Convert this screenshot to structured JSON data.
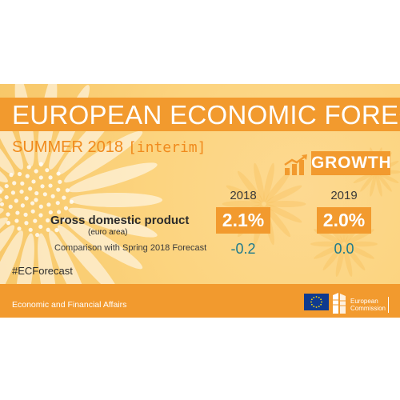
{
  "header": {
    "title": "EUROPEAN ECONOMIC FORECAST",
    "subtitle_main": "SUMMER 2018",
    "subtitle_tag": "[interim]"
  },
  "growth_badge": {
    "label": "GROWTH",
    "icon": "growth-chart-icon"
  },
  "table": {
    "years": [
      "2018",
      "2019"
    ],
    "gdp": {
      "label": "Gross domestic product",
      "sublabel": "(euro area)",
      "values": [
        "2.1%",
        "2.0%"
      ]
    },
    "comparison": {
      "label": "Comparison with Spring 2018 Forecast",
      "values": [
        "-0.2",
        "0.0"
      ]
    }
  },
  "hashtag": "#ECForecast",
  "footer": {
    "text": "Economic and Financial Affairs",
    "logo_line1": "European",
    "logo_line2": "Commission"
  },
  "colors": {
    "accent": "#f29a2e",
    "background": "#fcd47f",
    "value_teal": "#1e7a8c",
    "eu_blue": "#0f3a8f",
    "eu_star": "#ffdd00"
  }
}
